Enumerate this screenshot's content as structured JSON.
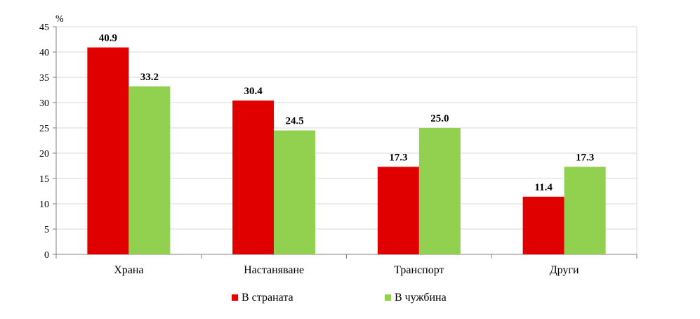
{
  "chart_data": {
    "type": "bar",
    "unit_label": "%",
    "categories": [
      "Храна",
      "Настаняване",
      "Транспорт",
      "Други"
    ],
    "series": [
      {
        "name": "В страната",
        "color": "#e00000",
        "values": [
          40.9,
          30.4,
          17.3,
          11.4
        ],
        "labels": [
          "40.9",
          "30.4",
          "17.3",
          "11.4"
        ]
      },
      {
        "name": "В чужбина",
        "color": "#92d050",
        "values": [
          33.2,
          24.5,
          25.0,
          17.3
        ],
        "labels": [
          "33.2",
          "24.5",
          "25.0",
          "17.3"
        ]
      }
    ],
    "yticks": [
      "0",
      "5",
      "10",
      "15",
      "20",
      "25",
      "30",
      "35",
      "40",
      "45"
    ],
    "ylim": [
      0,
      45
    ],
    "grid": true,
    "legend": "bottom-center"
  }
}
